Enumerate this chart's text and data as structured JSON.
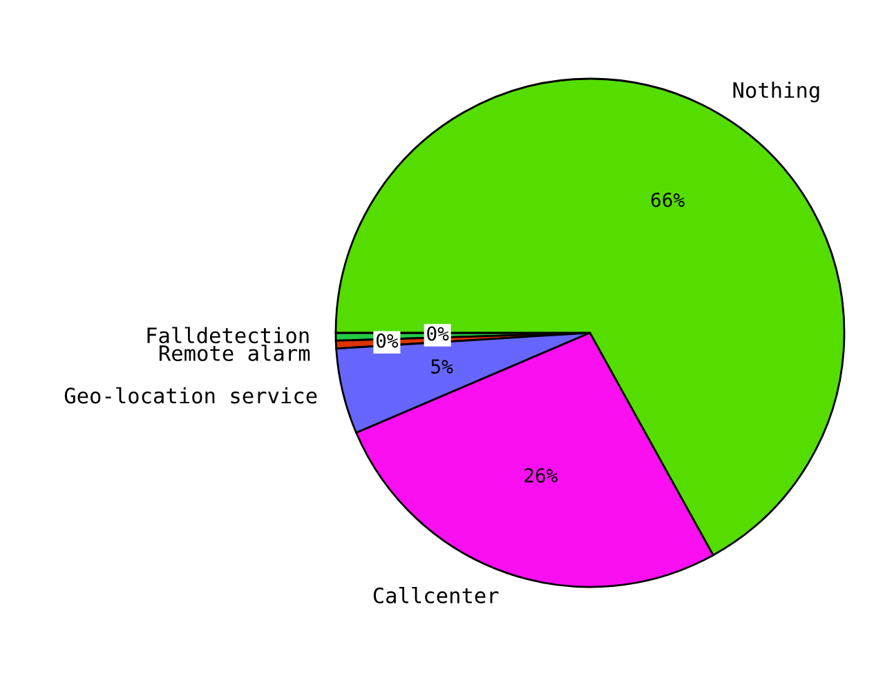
{
  "chart_data": {
    "type": "pie",
    "categories": [
      "Falldetection",
      "Remote alarm",
      "Geo-location service",
      "Callcenter",
      "Nothing"
    ],
    "values": [
      0.49,
      0.49,
      5.4,
      26.4,
      66.4
    ],
    "colors": [
      "#22cc44",
      "#dd3300",
      "#6666ff",
      "#f90ff0",
      "#55dd00"
    ],
    "value_labels": [
      "0%",
      "0%",
      "5%",
      "26%",
      "66%"
    ]
  }
}
